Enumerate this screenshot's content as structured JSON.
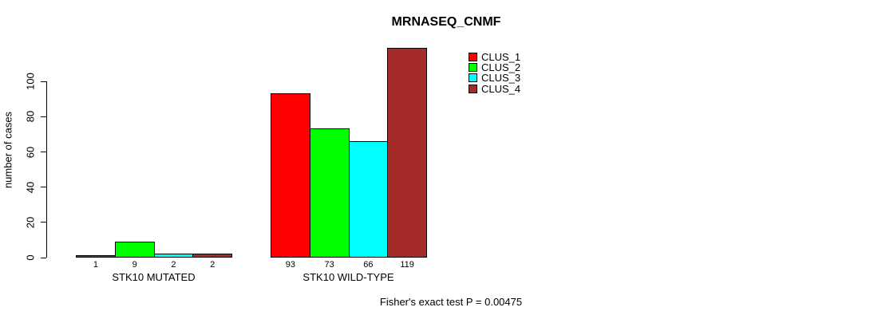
{
  "chart_data": {
    "type": "bar",
    "title": "MRNASEQ_CNMF",
    "xlabel": "",
    "ylabel": "number of cases",
    "annotation": "Fisher's exact test P = 0.00475",
    "categories": [
      "STK10 MUTATED",
      "STK10 WILD-TYPE"
    ],
    "series": [
      {
        "name": "CLUS_1",
        "color": "#ff0000",
        "values": [
          1,
          93
        ]
      },
      {
        "name": "CLUS_2",
        "color": "#00ff00",
        "values": [
          9,
          73
        ]
      },
      {
        "name": "CLUS_3",
        "color": "#00ffff",
        "values": [
          2,
          66
        ]
      },
      {
        "name": "CLUS_4",
        "color": "#a52a2a",
        "values": [
          2,
          119
        ]
      }
    ],
    "bar_value_labels": [
      [
        1,
        9,
        2,
        2
      ],
      [
        93,
        73,
        66,
        119
      ]
    ],
    "yticks": [
      0,
      20,
      40,
      60,
      80,
      100
    ],
    "ylim": [
      0,
      119
    ],
    "grid": false,
    "legend_position": "top-right",
    "bar_border_color": "#000000",
    "background_color": "#ffffff"
  }
}
